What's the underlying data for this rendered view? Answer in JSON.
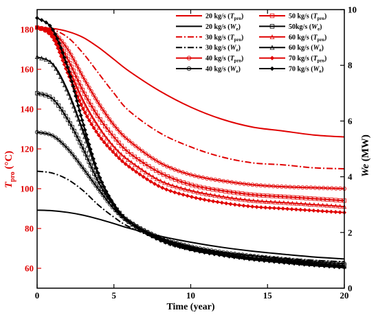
{
  "chart_data": {
    "type": "line",
    "xlabel": "Time (year)",
    "ylabel_left": {
      "main": "T",
      "sub": "pro",
      "unit": " (°C)"
    },
    "ylabel_right": {
      "main": "We",
      "unit": " (MW)"
    },
    "xlim": [
      0,
      20
    ],
    "ylim_left": [
      50,
      190
    ],
    "ylim_right": [
      0,
      10
    ],
    "xticks": [
      "0",
      "5",
      "10",
      "15",
      "20"
    ],
    "yticks_left": [
      "60",
      "80",
      "100",
      "120",
      "140",
      "160",
      "180"
    ],
    "yticks_right": [
      "0",
      "2",
      "4",
      "6",
      "8",
      "10"
    ],
    "colors": {
      "temp": "#e00000",
      "power": "#000000"
    },
    "grid": false,
    "legend_position": "top-right",
    "series": [
      {
        "name": "20 kg/s (Tpro)",
        "label": "20 kg/s (",
        "var": "T",
        "vsub": "pro",
        "axis": "left",
        "color": "#e00000",
        "dash": "solid",
        "marker": "none",
        "x": [
          0,
          1,
          2,
          3,
          4,
          5,
          6,
          8,
          10,
          12,
          14,
          16,
          18,
          20
        ],
        "values": [
          181,
          180.5,
          179,
          176,
          171,
          165,
          159,
          149,
          141,
          135,
          131,
          129,
          127,
          126
        ]
      },
      {
        "name": "20 kg/s (We)",
        "label": "20 kg/s (",
        "var": "W",
        "vsub": "e",
        "axis": "right",
        "color": "#000000",
        "dash": "solid",
        "marker": "none",
        "x": [
          0,
          1,
          2,
          3,
          4,
          5,
          6,
          8,
          10,
          12,
          14,
          16,
          18,
          20
        ],
        "values": [
          2.8,
          2.78,
          2.72,
          2.62,
          2.48,
          2.32,
          2.15,
          1.87,
          1.65,
          1.47,
          1.33,
          1.22,
          1.12,
          1.05
        ]
      },
      {
        "name": "30 kg/s (Tpro)",
        "label": "30 kg/s (",
        "var": "T",
        "vsub": "pro",
        "axis": "left",
        "color": "#e00000",
        "dash": "dashdot",
        "marker": "none",
        "x": [
          0,
          1,
          2,
          3,
          4,
          5,
          6,
          8,
          10,
          12,
          14,
          16,
          18,
          20
        ],
        "values": [
          181,
          180,
          176,
          168,
          158,
          148,
          139,
          128,
          121,
          116,
          113,
          112,
          110.5,
          110
        ]
      },
      {
        "name": "30 kg/s (We)",
        "label": "30 kg/s (",
        "var": "W",
        "vsub": "e",
        "axis": "right",
        "color": "#000000",
        "dash": "dashdot",
        "marker": "none",
        "x": [
          0,
          1,
          2,
          3,
          4,
          5,
          6,
          8,
          10,
          12,
          14,
          16,
          18,
          20
        ],
        "values": [
          4.2,
          4.13,
          3.9,
          3.5,
          2.98,
          2.55,
          2.2,
          1.75,
          1.48,
          1.3,
          1.18,
          1.08,
          1.0,
          0.95
        ]
      },
      {
        "name": "40 kg/s (Tpro)",
        "label": "40 kg/s (",
        "var": "T",
        "vsub": "pro",
        "axis": "left",
        "color": "#e00000",
        "dash": "solid",
        "marker": "circle",
        "x": [
          0,
          1,
          2,
          3,
          4,
          5,
          6,
          8,
          10,
          12,
          14,
          16,
          18,
          20
        ],
        "values": [
          181,
          179,
          170,
          156,
          143,
          132,
          124,
          113,
          107,
          104,
          102,
          101,
          100.5,
          100
        ]
      },
      {
        "name": "40 kg/s (We)",
        "label": "40 kg/s (",
        "var": "W",
        "vsub": "e",
        "axis": "right",
        "color": "#000000",
        "dash": "solid",
        "marker": "circle",
        "x": [
          0,
          1,
          2,
          3,
          4,
          5,
          6,
          8,
          10,
          12,
          14,
          16,
          18,
          20
        ],
        "values": [
          5.6,
          5.48,
          5.0,
          4.3,
          3.55,
          2.85,
          2.38,
          1.82,
          1.5,
          1.3,
          1.16,
          1.05,
          0.95,
          0.88
        ]
      },
      {
        "name": "50 kg/s (Tpro)",
        "label": "50 kg/s (",
        "var": "T",
        "vsub": "pro",
        "axis": "left",
        "color": "#e00000",
        "dash": "solid",
        "marker": "square",
        "x": [
          0,
          1,
          2,
          3,
          4,
          5,
          6,
          8,
          10,
          12,
          14,
          16,
          18,
          20
        ],
        "values": [
          181,
          178,
          165,
          149,
          136,
          126,
          118,
          108,
          102,
          99,
          97,
          96,
          95,
          94
        ]
      },
      {
        "name": "50kg/s (We)",
        "label": "50kg/s (",
        "var": "W",
        "vsub": "e",
        "axis": "right",
        "color": "#000000",
        "dash": "solid",
        "marker": "square",
        "x": [
          0,
          1,
          2,
          3,
          4,
          5,
          6,
          8,
          10,
          12,
          14,
          16,
          18,
          20
        ],
        "values": [
          7.0,
          6.8,
          6.05,
          5.0,
          3.8,
          2.95,
          2.38,
          1.78,
          1.45,
          1.25,
          1.1,
          1.0,
          0.9,
          0.82
        ]
      },
      {
        "name": "60 kg/s (Tpro)",
        "label": "60 kg/s (",
        "var": "T",
        "vsub": "pro",
        "axis": "left",
        "color": "#e00000",
        "dash": "solid",
        "marker": "triangle",
        "x": [
          0,
          1,
          2,
          3,
          4,
          5,
          6,
          8,
          10,
          12,
          14,
          16,
          18,
          20
        ],
        "values": [
          181,
          177,
          161,
          144,
          131,
          121,
          114,
          104,
          99,
          96,
          94,
          93,
          92,
          91
        ]
      },
      {
        "name": "60 kg/s (We)",
        "label": "60 kg/s (",
        "var": "W",
        "vsub": "e",
        "axis": "right",
        "color": "#000000",
        "dash": "solid",
        "marker": "triangle",
        "x": [
          0,
          1,
          2,
          3,
          4,
          5,
          6,
          8,
          10,
          12,
          14,
          16,
          18,
          20
        ],
        "values": [
          8.3,
          8.05,
          7.05,
          5.6,
          4.05,
          3.0,
          2.38,
          1.75,
          1.42,
          1.22,
          1.07,
          0.96,
          0.86,
          0.78
        ]
      },
      {
        "name": "70 kg/s (Tpro)",
        "label": "70 kg/s (",
        "var": "T",
        "vsub": "pro",
        "axis": "left",
        "color": "#e00000",
        "dash": "solid",
        "marker": "diamond",
        "x": [
          0,
          1,
          2,
          3,
          4,
          5,
          6,
          8,
          10,
          12,
          14,
          16,
          18,
          20
        ],
        "values": [
          181,
          176,
          158,
          140,
          127,
          118,
          111,
          101,
          96,
          93,
          91,
          90,
          89,
          88
        ]
      },
      {
        "name": "70 kg/s (We)",
        "label": "70 kg/s (",
        "var": "W",
        "vsub": "e",
        "axis": "right",
        "color": "#000000",
        "dash": "solid",
        "marker": "diamond",
        "x": [
          0,
          1,
          2,
          3,
          4,
          5,
          6,
          8,
          10,
          12,
          14,
          16,
          18,
          20
        ],
        "values": [
          9.7,
          9.3,
          7.9,
          5.9,
          4.1,
          3.0,
          2.38,
          1.72,
          1.38,
          1.18,
          1.03,
          0.92,
          0.82,
          0.74
        ]
      }
    ]
  }
}
